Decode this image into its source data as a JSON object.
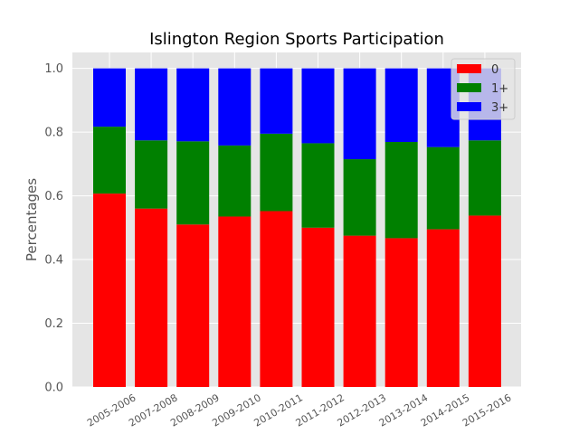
{
  "chart_data": {
    "type": "bar",
    "stacked": true,
    "title": "Islington Region Sports Participation",
    "xlabel": "",
    "ylabel": "Percentages",
    "ylim": [
      0,
      1.05
    ],
    "yticks": [
      "0.0",
      "0.2",
      "0.4",
      "0.6",
      "0.8",
      "1.0"
    ],
    "grid": true,
    "legend_position": "top-right",
    "categories": [
      "2005-2006",
      "2007-2008",
      "2008-2009",
      "2009-2010",
      "2010-2011",
      "2011-2012",
      "2012-2013",
      "2013-2014",
      "2014-2015",
      "2015-2016"
    ],
    "series": [
      {
        "name": "0",
        "color": "#ff0000",
        "values": [
          0.607,
          0.56,
          0.51,
          0.535,
          0.552,
          0.5,
          0.475,
          0.467,
          0.495,
          0.538
        ]
      },
      {
        "name": "1+",
        "color": "#008000",
        "values": [
          0.21,
          0.214,
          0.261,
          0.223,
          0.243,
          0.265,
          0.24,
          0.302,
          0.258,
          0.236
        ]
      },
      {
        "name": "3+",
        "color": "#0000ff",
        "values": [
          0.183,
          0.226,
          0.229,
          0.242,
          0.205,
          0.235,
          0.285,
          0.231,
          0.247,
          0.226
        ]
      }
    ]
  }
}
